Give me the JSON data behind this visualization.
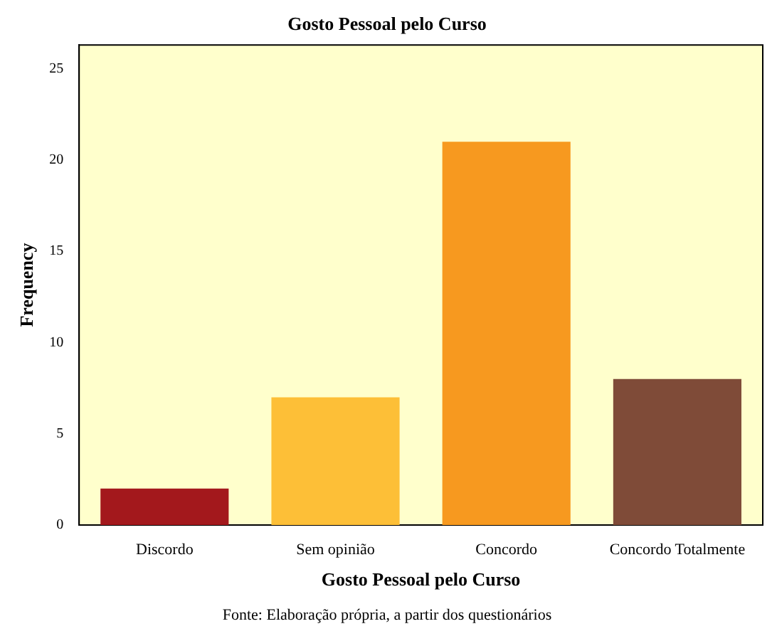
{
  "chart_data": {
    "type": "bar",
    "title": "Gosto Pessoal pelo Curso",
    "xlabel": "Gosto Pessoal pelo Curso",
    "ylabel": "Frequency",
    "categories": [
      "Discordo",
      "Sem opinião",
      "Concordo",
      "Concordo Totalmente"
    ],
    "values": [
      2,
      7,
      21,
      8
    ],
    "colors": [
      "#a3181c",
      "#fdbf37",
      "#f7991f",
      "#7f4b38"
    ],
    "ylim": [
      0,
      26.3
    ],
    "yticks": [
      0,
      5,
      10,
      15,
      20,
      25
    ],
    "grid": false,
    "legend": false,
    "annotations": [
      "Fonte: Elaboração própria, a partir dos questionários"
    ]
  }
}
